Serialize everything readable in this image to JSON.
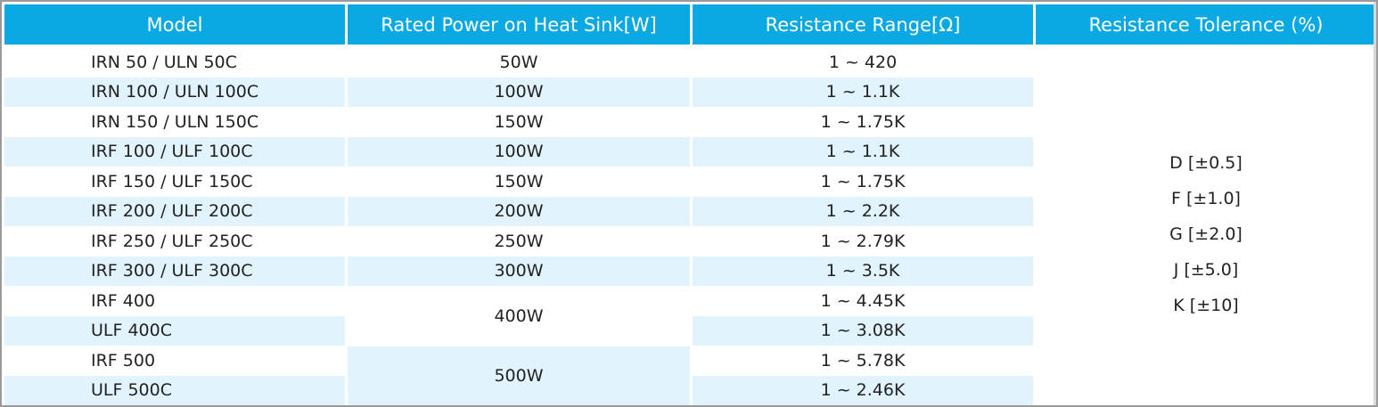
{
  "table": {
    "headers": [
      "Model",
      "Rated Power on Heat Sink[W]",
      "Resistance Range[Ω]",
      "Resistance Tolerance (%)"
    ],
    "rows": [
      {
        "model": "IRN 50 / ULN 50C",
        "power": "50W",
        "range": "1 ~ 420"
      },
      {
        "model": "IRN 100 / ULN 100C",
        "power": "100W",
        "range": "1 ~ 1.1K"
      },
      {
        "model": "IRN 150 / ULN 150C",
        "power": "150W",
        "range": "1 ~ 1.75K"
      },
      {
        "model": "IRF 100 / ULF 100C",
        "power": "100W",
        "range": "1 ~ 1.1K"
      },
      {
        "model": "IRF 150 / ULF 150C",
        "power": "150W",
        "range": "1 ~ 1.75K"
      },
      {
        "model": "IRF 200 / ULF 200C",
        "power": "200W",
        "range": "1 ~ 2.2K"
      },
      {
        "model": "IRF 250 / ULF 250C",
        "power": "250W",
        "range": "1 ~ 2.79K"
      },
      {
        "model": "IRF 300 / ULF 300C",
        "power": "300W",
        "range": "1 ~ 3.5K"
      },
      {
        "model": "IRF 400",
        "power": "400W",
        "range": "1 ~ 4.45K"
      },
      {
        "model": "ULF 400C",
        "power": "",
        "range": "1 ~ 3.08K"
      },
      {
        "model": "IRF 500",
        "power": "500W",
        "range": "1 ~ 5.78K"
      },
      {
        "model": "ULF 500C",
        "power": "",
        "range": "1 ~ 2.46K"
      }
    ],
    "tolerances": [
      "D [±0.5]",
      "F [±1.0]",
      "G [±2.0]",
      "J [±5.0]",
      "K [±10]"
    ]
  },
  "colors": {
    "header_bg": "#0aa9e4",
    "stripe_bg": "#e1f3fc",
    "text": "#222222"
  }
}
